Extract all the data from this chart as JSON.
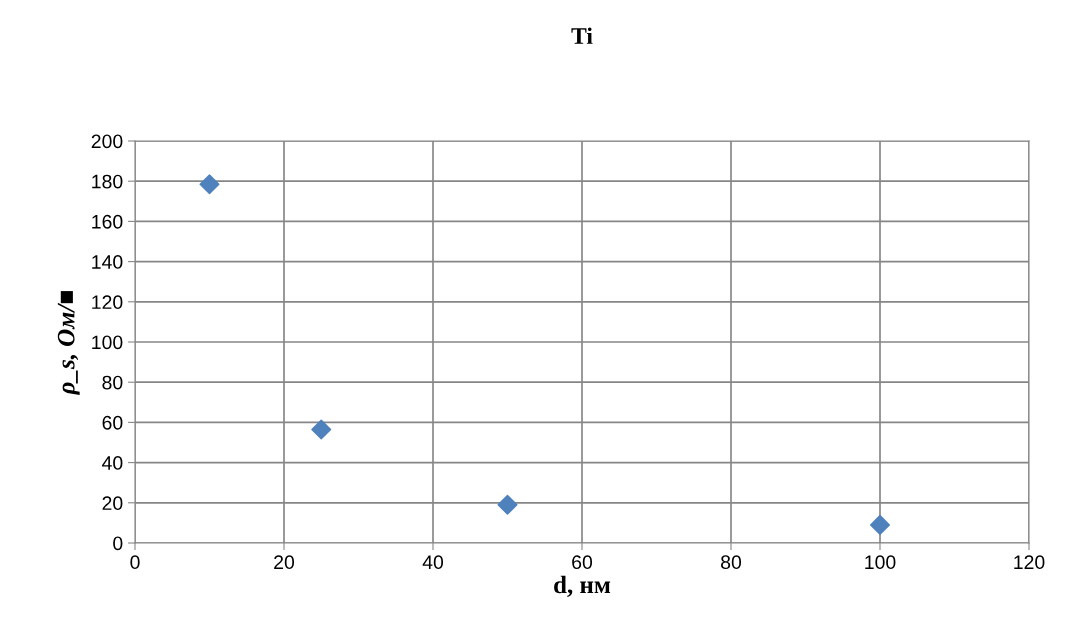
{
  "chart_data": {
    "type": "scatter",
    "title": "Ti",
    "xlabel": "d, нм",
    "ylabel": "ρ_s, Ом/■",
    "x": [
      10,
      25,
      50,
      100
    ],
    "series": [
      {
        "color": "#4f81bd",
        "values": [
          178.5,
          56.5,
          19,
          9
        ]
      }
    ],
    "marker": "diamond",
    "xlim": [
      0,
      120
    ],
    "xticks": [
      0,
      20,
      40,
      60,
      80,
      100,
      120
    ],
    "ylim": [
      0,
      200
    ],
    "yticks": [
      0,
      20,
      40,
      60,
      80,
      100,
      120,
      140,
      160,
      180,
      200
    ],
    "grid": true,
    "legend": false
  }
}
